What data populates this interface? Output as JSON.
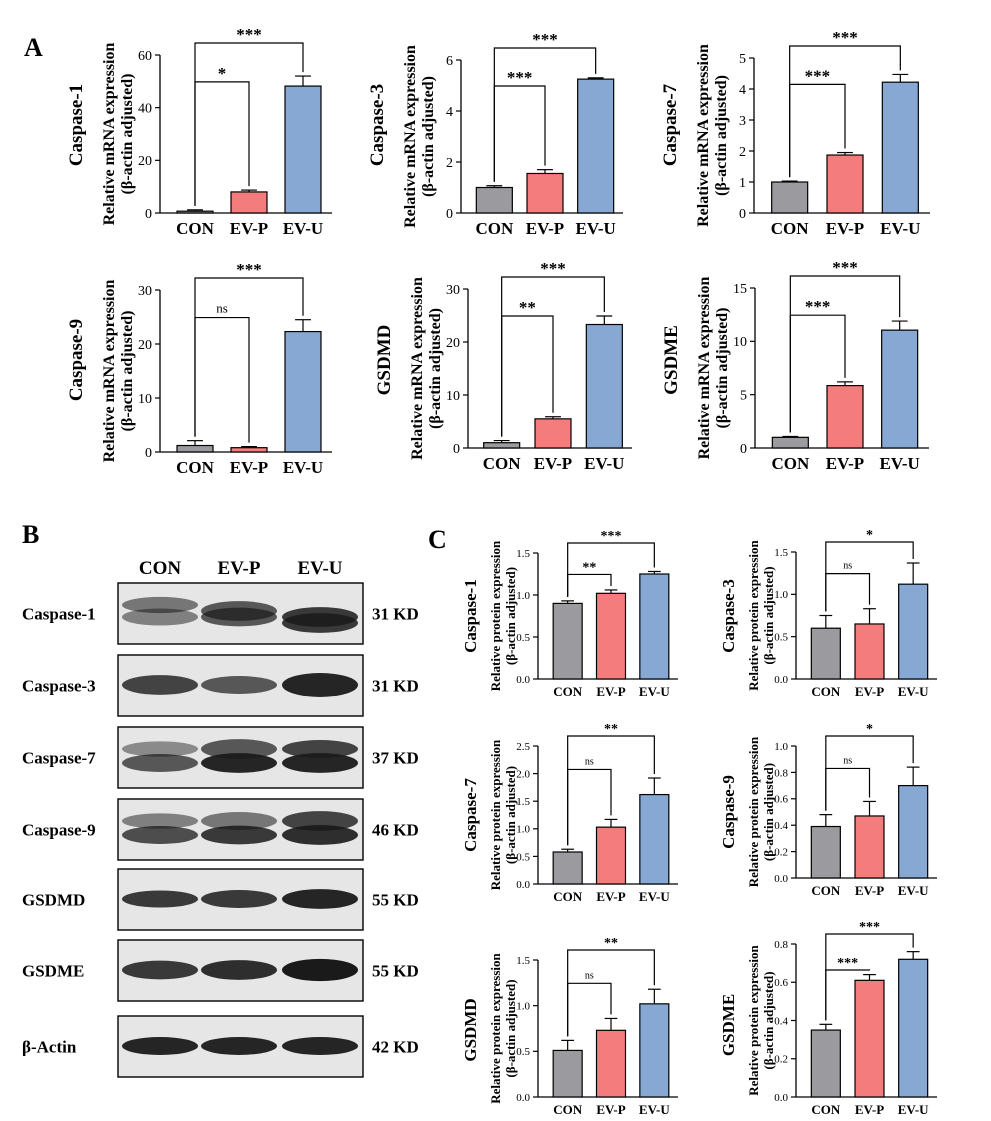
{
  "panels": {
    "A": "A",
    "B": "B",
    "C": "C"
  },
  "western_blot": {
    "lanes": [
      "CON",
      "EV-P",
      "EV-U"
    ],
    "proteins": [
      {
        "name": "Caspase-1",
        "kd": "31 KD"
      },
      {
        "name": "Caspase-3",
        "kd": "31 KD"
      },
      {
        "name": "Caspase-7",
        "kd": "37 KD"
      },
      {
        "name": "Caspase-9",
        "kd": "46 KD"
      },
      {
        "name": "GSDMD",
        "kd": "55 KD"
      },
      {
        "name": "GSDME",
        "kd": "55 KD"
      },
      {
        "name": "β-Actin",
        "kd": "42 KD"
      }
    ]
  },
  "colors": {
    "CON": "#9a9a9f",
    "EV-P": "#f47c7c",
    "EV-U": "#86a8d2"
  },
  "chart_data": [
    {
      "type": "bar",
      "panel": "A",
      "title": "Caspase-1",
      "ylabel": [
        "Relative mRNA expression",
        "(β-actin adjusted)"
      ],
      "categories": [
        "CON",
        "EV-P",
        "EV-U"
      ],
      "values": [
        0.7,
        8,
        48.2
      ],
      "errors": [
        0.5,
        0.7,
        3.8
      ],
      "ylim": [
        0,
        60
      ],
      "yticks": [
        0,
        20,
        40,
        60
      ],
      "tick_labels": [
        "0",
        "20",
        "40",
        "60"
      ],
      "significance": [
        {
          "pair": [
            0,
            1
          ],
          "label": "*"
        },
        {
          "pair": [
            0,
            2
          ],
          "label": "***"
        }
      ]
    },
    {
      "type": "bar",
      "panel": "A",
      "title": "Caspase-3",
      "ylabel": [
        "Relative mRNA expression",
        "(β-actin adjusted)"
      ],
      "categories": [
        "CON",
        "EV-P",
        "EV-U"
      ],
      "values": [
        1.0,
        1.55,
        5.25
      ],
      "errors": [
        0.07,
        0.15,
        0.05
      ],
      "ylim": [
        0,
        6
      ],
      "yticks": [
        0,
        2,
        4,
        6
      ],
      "tick_labels": [
        "0",
        "2",
        "4",
        "6"
      ],
      "significance": [
        {
          "pair": [
            0,
            1
          ],
          "label": "***"
        },
        {
          "pair": [
            0,
            2
          ],
          "label": "***"
        }
      ]
    },
    {
      "type": "bar",
      "panel": "A",
      "title": "Caspase-7",
      "ylabel": [
        "Relative mRNA expression",
        "(β-actin adjusted)"
      ],
      "categories": [
        "CON",
        "EV-P",
        "EV-U"
      ],
      "values": [
        1.0,
        1.87,
        4.22
      ],
      "errors": [
        0.03,
        0.08,
        0.25
      ],
      "ylim": [
        0,
        5
      ],
      "yticks": [
        0,
        1,
        2,
        3,
        4,
        5
      ],
      "tick_labels": [
        "0",
        "1",
        "2",
        "3",
        "4",
        "5"
      ],
      "significance": [
        {
          "pair": [
            0,
            1
          ],
          "label": "***"
        },
        {
          "pair": [
            0,
            2
          ],
          "label": "***"
        }
      ]
    },
    {
      "type": "bar",
      "panel": "A",
      "title": "Caspase-9",
      "ylabel": [
        "Relative mRNA expression",
        "(β-actin adjusted)"
      ],
      "categories": [
        "CON",
        "EV-P",
        "EV-U"
      ],
      "values": [
        1.2,
        0.8,
        22.3
      ],
      "errors": [
        0.9,
        0.2,
        2.2
      ],
      "ylim": [
        0,
        30
      ],
      "yticks": [
        0,
        10,
        20,
        30
      ],
      "tick_labels": [
        "0",
        "10",
        "20",
        "30"
      ],
      "significance": [
        {
          "pair": [
            0,
            1
          ],
          "label": "ns"
        },
        {
          "pair": [
            0,
            2
          ],
          "label": "***"
        }
      ]
    },
    {
      "type": "bar",
      "panel": "A",
      "title": "GSDMD",
      "ylabel": [
        "Relative mRNA expression",
        "(β-actin adjusted)"
      ],
      "categories": [
        "CON",
        "EV-P",
        "EV-U"
      ],
      "values": [
        1.0,
        5.5,
        23.3
      ],
      "errors": [
        0.4,
        0.4,
        1.6
      ],
      "ylim": [
        0,
        30
      ],
      "yticks": [
        0,
        10,
        20,
        30
      ],
      "tick_labels": [
        "0",
        "10",
        "20",
        "30"
      ],
      "significance": [
        {
          "pair": [
            0,
            1
          ],
          "label": "**"
        },
        {
          "pair": [
            0,
            2
          ],
          "label": "***"
        }
      ]
    },
    {
      "type": "bar",
      "panel": "A",
      "title": "GSDME",
      "ylabel": [
        "Relative mRNA expression",
        "(β-actin adjusted)"
      ],
      "categories": [
        "CON",
        "EV-P",
        "EV-U"
      ],
      "values": [
        1.0,
        5.85,
        11.05
      ],
      "errors": [
        0.08,
        0.35,
        0.85
      ],
      "ylim": [
        0,
        15
      ],
      "yticks": [
        0,
        5,
        10,
        15
      ],
      "tick_labels": [
        "0",
        "5",
        "10",
        "15"
      ],
      "significance": [
        {
          "pair": [
            0,
            1
          ],
          "label": "***"
        },
        {
          "pair": [
            0,
            2
          ],
          "label": "***"
        }
      ]
    },
    {
      "type": "bar",
      "panel": "C",
      "title": "Caspase-1",
      "ylabel": [
        "Relative protein expression",
        "(β-actin adjusted)"
      ],
      "categories": [
        "CON",
        "EV-P",
        "EV-U"
      ],
      "values": [
        0.9,
        1.02,
        1.25
      ],
      "errors": [
        0.03,
        0.04,
        0.03
      ],
      "ylim": [
        0,
        1.5
      ],
      "yticks": [
        0,
        0.5,
        1.0,
        1.5
      ],
      "tick_labels": [
        "0.0",
        "0.5",
        "1.0",
        "1.5"
      ],
      "significance": [
        {
          "pair": [
            0,
            1
          ],
          "label": "**"
        },
        {
          "pair": [
            0,
            2
          ],
          "label": "***"
        }
      ]
    },
    {
      "type": "bar",
      "panel": "C",
      "title": "Caspase-3",
      "ylabel": [
        "Relative protein expression",
        "(β-actin adjusted)"
      ],
      "categories": [
        "CON",
        "EV-P",
        "EV-U"
      ],
      "values": [
        0.6,
        0.65,
        1.12
      ],
      "errors": [
        0.15,
        0.18,
        0.25
      ],
      "ylim": [
        0,
        1.5
      ],
      "yticks": [
        0,
        0.5,
        1.0,
        1.5
      ],
      "tick_labels": [
        "0.0",
        "0.5",
        "1.0",
        "1.5"
      ],
      "significance": [
        {
          "pair": [
            0,
            1
          ],
          "label": "ns"
        },
        {
          "pair": [
            0,
            2
          ],
          "label": "*"
        }
      ]
    },
    {
      "type": "bar",
      "panel": "C",
      "title": "Caspase-7",
      "ylabel": [
        "Relative protein expression",
        "(β-actin adjusted)"
      ],
      "categories": [
        "CON",
        "EV-P",
        "EV-U"
      ],
      "values": [
        0.58,
        1.03,
        1.62
      ],
      "errors": [
        0.05,
        0.14,
        0.3
      ],
      "ylim": [
        0,
        2.5
      ],
      "yticks": [
        0,
        0.5,
        1.0,
        1.5,
        2.0,
        2.5
      ],
      "tick_labels": [
        "0.0",
        "0.5",
        "1.0",
        "1.5",
        "2.0",
        "2.5"
      ],
      "significance": [
        {
          "pair": [
            0,
            1
          ],
          "label": "ns"
        },
        {
          "pair": [
            0,
            2
          ],
          "label": "**"
        }
      ]
    },
    {
      "type": "bar",
      "panel": "C",
      "title": "Caspase-9",
      "ylabel": [
        "Relative protein expression",
        "(β-actin adjusted)"
      ],
      "categories": [
        "CON",
        "EV-P",
        "EV-U"
      ],
      "values": [
        0.39,
        0.47,
        0.7
      ],
      "errors": [
        0.09,
        0.11,
        0.14
      ],
      "ylim": [
        0,
        1.0
      ],
      "yticks": [
        0,
        0.2,
        0.4,
        0.6,
        0.8,
        1.0
      ],
      "tick_labels": [
        "0.0",
        "0.2",
        "0.4",
        "0.6",
        "0.8",
        "1.0"
      ],
      "significance": [
        {
          "pair": [
            0,
            1
          ],
          "label": "ns"
        },
        {
          "pair": [
            0,
            2
          ],
          "label": "*"
        }
      ]
    },
    {
      "type": "bar",
      "panel": "C",
      "title": "GSDMD",
      "ylabel": [
        "Relative protein expression",
        "(β-actin adjusted)"
      ],
      "categories": [
        "CON",
        "EV-P",
        "EV-U"
      ],
      "values": [
        0.51,
        0.73,
        1.02
      ],
      "errors": [
        0.11,
        0.13,
        0.16
      ],
      "ylim": [
        0,
        1.5
      ],
      "yticks": [
        0,
        0.5,
        1.0,
        1.5
      ],
      "tick_labels": [
        "0.0",
        "0.5",
        "1.0",
        "1.5"
      ],
      "significance": [
        {
          "pair": [
            0,
            1
          ],
          "label": "ns"
        },
        {
          "pair": [
            0,
            2
          ],
          "label": "**"
        }
      ]
    },
    {
      "type": "bar",
      "panel": "C",
      "title": "GSDME",
      "ylabel": [
        "Relative protein expression",
        "(β-actin adjusted)"
      ],
      "categories": [
        "CON",
        "EV-P",
        "EV-U"
      ],
      "values": [
        0.35,
        0.61,
        0.72
      ],
      "errors": [
        0.03,
        0.03,
        0.04
      ],
      "ylim": [
        0,
        0.8
      ],
      "yticks": [
        0,
        0.2,
        0.4,
        0.6,
        0.8
      ],
      "tick_labels": [
        "0.0",
        "0.2",
        "0.4",
        "0.6",
        "0.8"
      ],
      "significance": [
        {
          "pair": [
            0,
            1
          ],
          "label": "***"
        },
        {
          "pair": [
            0,
            2
          ],
          "label": "***"
        }
      ]
    }
  ]
}
